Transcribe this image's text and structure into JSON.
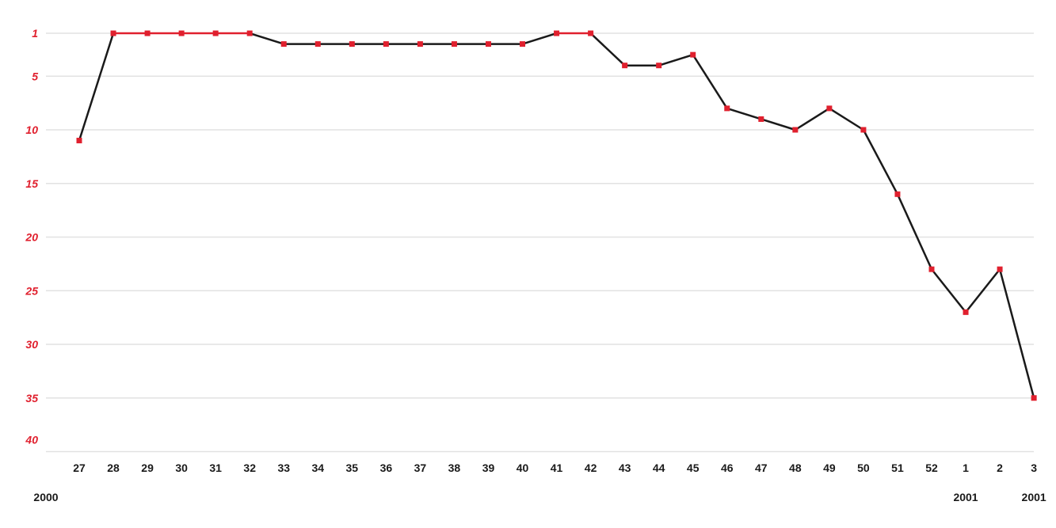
{
  "chart_data": {
    "type": "line",
    "title": "",
    "xlabel": "",
    "ylabel": "",
    "y_inverted": true,
    "ylim": [
      0,
      40
    ],
    "yticks": [
      "1",
      "5",
      "10",
      "15",
      "20",
      "25",
      "30",
      "35",
      "40"
    ],
    "grid": "horizontal",
    "categories": [
      "27",
      "28",
      "29",
      "30",
      "31",
      "32",
      "33",
      "34",
      "35",
      "36",
      "37",
      "38",
      "39",
      "40",
      "41",
      "42",
      "43",
      "44",
      "45",
      "46",
      "47",
      "48",
      "49",
      "50",
      "51",
      "52",
      "1",
      "2",
      "3"
    ],
    "year_labels": [
      {
        "category_index": 0,
        "label": "2000"
      },
      {
        "category_index": 26,
        "label": "2001"
      },
      {
        "category_index": 28,
        "label": "2001"
      }
    ],
    "series": [
      {
        "values": [
          11,
          1,
          1,
          1,
          1,
          1,
          2,
          2,
          2,
          2,
          2,
          2,
          2,
          2,
          1,
          1,
          4,
          4,
          3,
          8,
          9,
          10,
          8,
          10,
          16,
          23,
          27,
          23,
          35
        ]
      }
    ],
    "colors": {
      "line": "#1a1a1a",
      "line_at_top": "#e0202e",
      "marker": "#e0202e",
      "grid": "#e2e2e2",
      "ytick": "#e0202e",
      "xtick": "#1a1a1a"
    }
  }
}
